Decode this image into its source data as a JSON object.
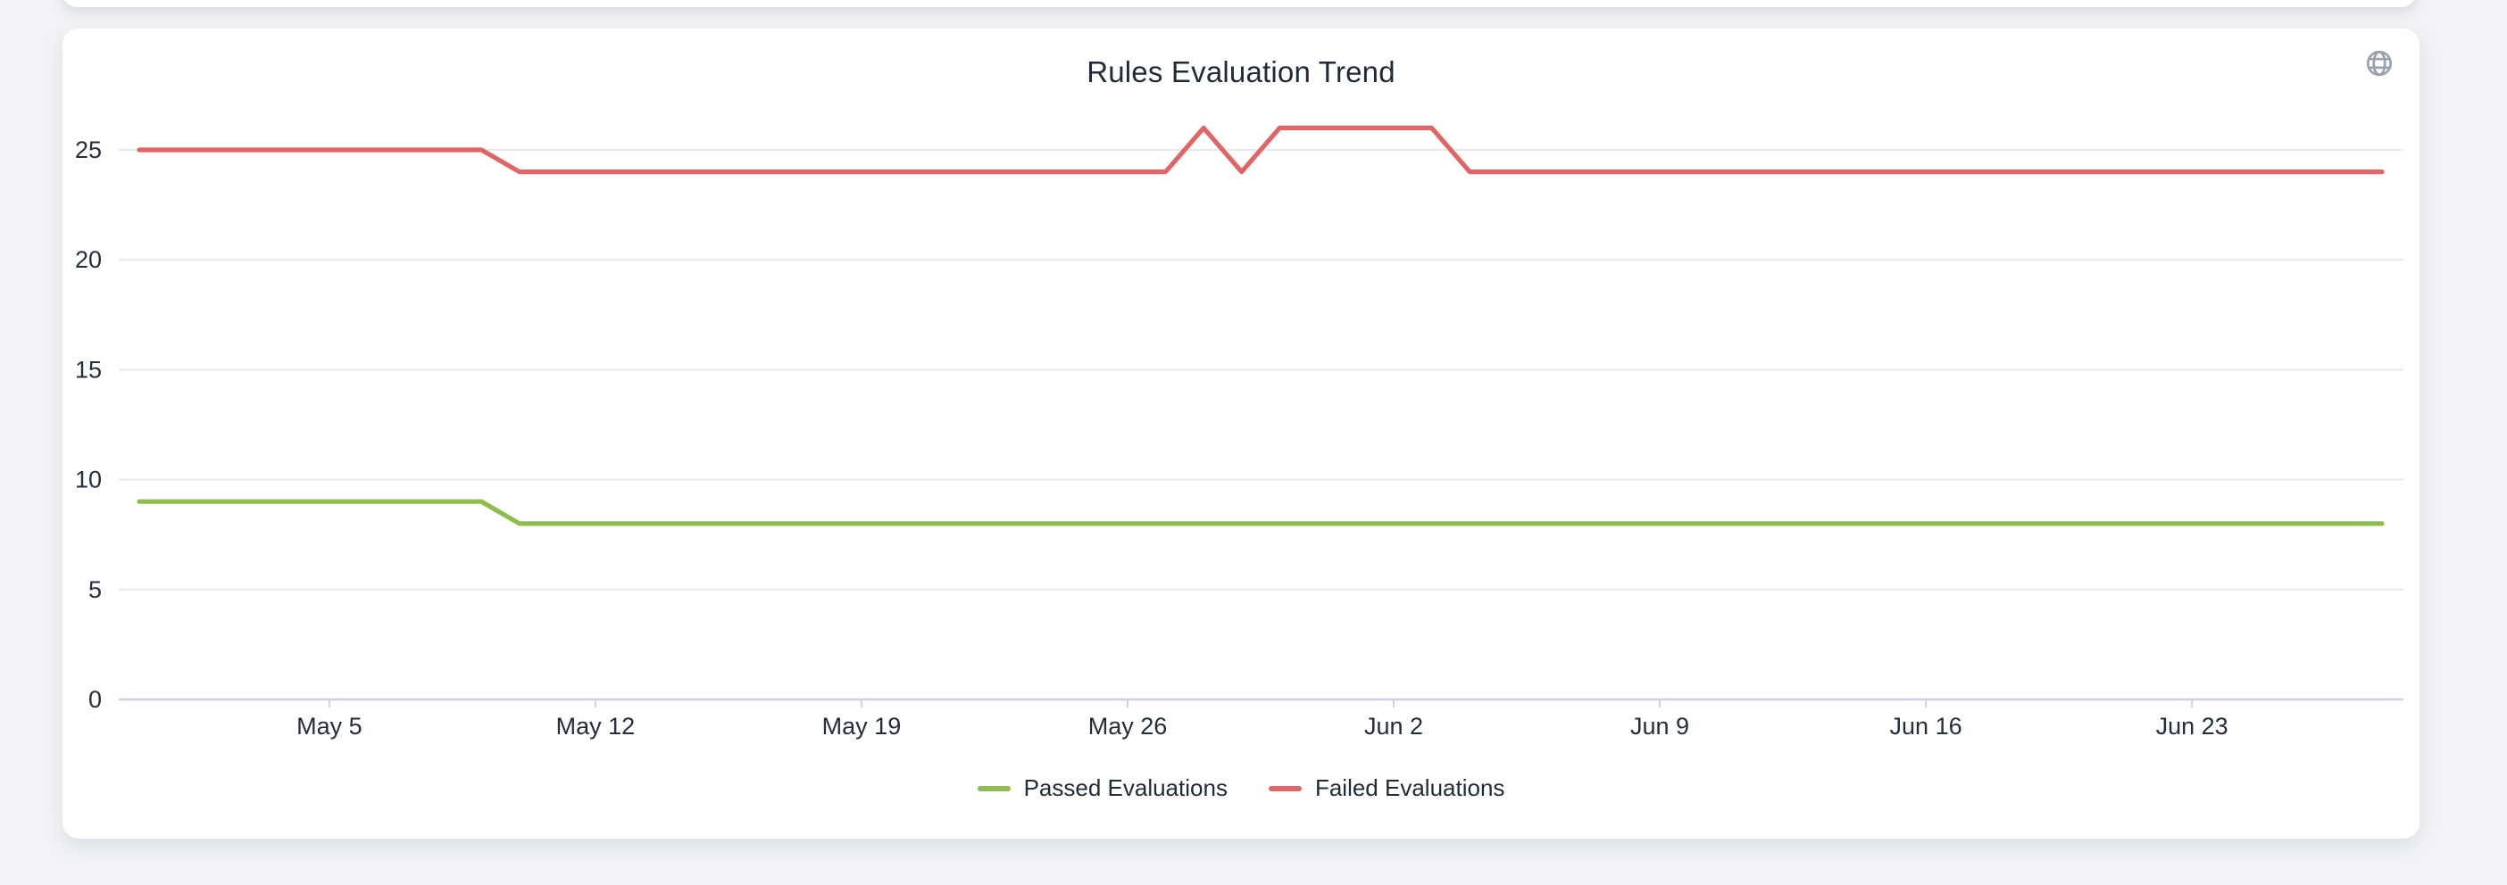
{
  "card": {
    "title": "Rules Evaluation Trend"
  },
  "chart_data": {
    "type": "line",
    "title": "Rules Evaluation Trend",
    "xlabel": "",
    "ylabel": "",
    "x_start_date": "Apr 30",
    "x_end_date": "Jun 28",
    "x_interval": "1 day",
    "point_count": 60,
    "x_ticks": [
      {
        "label": "May 5",
        "day_index": 5
      },
      {
        "label": "May 12",
        "day_index": 12
      },
      {
        "label": "May 19",
        "day_index": 19
      },
      {
        "label": "May 26",
        "day_index": 26
      },
      {
        "label": "Jun 2",
        "day_index": 33
      },
      {
        "label": "Jun 9",
        "day_index": 40
      },
      {
        "label": "Jun 16",
        "day_index": 47
      },
      {
        "label": "Jun 23",
        "day_index": 54
      }
    ],
    "y_ticks": [
      0,
      5,
      10,
      15,
      20,
      25
    ],
    "ylim": [
      0,
      26.5
    ],
    "grid": "horizontal",
    "grid_color": "#e8e9ec",
    "zero_line_color": "#c9d2e6",
    "legend_position": "bottom",
    "series": [
      {
        "name": "Passed Evaluations",
        "color": "#8dbd4a",
        "values": [
          9,
          9,
          9,
          9,
          9,
          9,
          9,
          9,
          9,
          9,
          8,
          8,
          8,
          8,
          8,
          8,
          8,
          8,
          8,
          8,
          8,
          8,
          8,
          8,
          8,
          8,
          8,
          8,
          8,
          8,
          8,
          8,
          8,
          8,
          8,
          8,
          8,
          8,
          8,
          8,
          8,
          8,
          8,
          8,
          8,
          8,
          8,
          8,
          8,
          8,
          8,
          8,
          8,
          8,
          8,
          8,
          8,
          8,
          8,
          8
        ]
      },
      {
        "name": "Failed Evaluations",
        "color": "#e16565",
        "values": [
          25,
          25,
          25,
          25,
          25,
          25,
          25,
          25,
          25,
          25,
          24,
          24,
          24,
          24,
          24,
          24,
          24,
          24,
          24,
          24,
          24,
          24,
          24,
          24,
          24,
          24,
          24,
          24,
          26,
          24,
          26,
          26,
          26,
          26,
          26,
          24,
          24,
          24,
          24,
          24,
          24,
          24,
          24,
          24,
          24,
          24,
          24,
          24,
          24,
          24,
          24,
          24,
          24,
          24,
          24,
          24,
          24,
          24,
          24,
          24
        ]
      }
    ]
  }
}
